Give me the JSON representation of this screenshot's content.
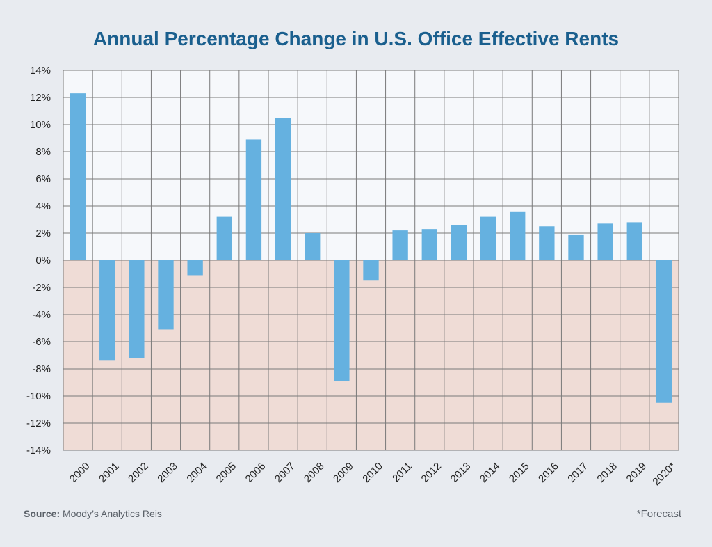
{
  "source": {
    "label": "Source:",
    "text": "Moody’s Analytics Reis"
  },
  "footnote": "*Forecast",
  "colors": {
    "bar": "#65b1e0",
    "positive_bg": "#f6f8fb",
    "negative_bg": "#efdcd6",
    "grid": "#7a7a7a"
  },
  "chart_data": {
    "type": "bar",
    "title": "Annual Percentage Change in U.S. Office Effective Rents",
    "xlabel": "",
    "ylabel": "",
    "ylim": [
      -14,
      14
    ],
    "yticks": [
      14,
      12,
      10,
      8,
      6,
      4,
      2,
      0,
      -2,
      -4,
      -6,
      -8,
      -10,
      -12,
      -14
    ],
    "ytick_suffix": "%",
    "grid": true,
    "categories": [
      "2000",
      "2001",
      "2002",
      "2003",
      "2004",
      "2005",
      "2006",
      "2007",
      "2008",
      "2009",
      "2010",
      "2011",
      "2012",
      "2013",
      "2014",
      "2015",
      "2016",
      "2017",
      "2018",
      "2019",
      "2020*"
    ],
    "values": [
      12.3,
      -7.4,
      -7.2,
      -5.1,
      -1.1,
      3.2,
      8.9,
      10.5,
      2.0,
      -8.9,
      -1.5,
      2.2,
      2.3,
      2.6,
      3.2,
      3.6,
      2.5,
      1.9,
      2.7,
      2.8,
      -10.5
    ]
  }
}
